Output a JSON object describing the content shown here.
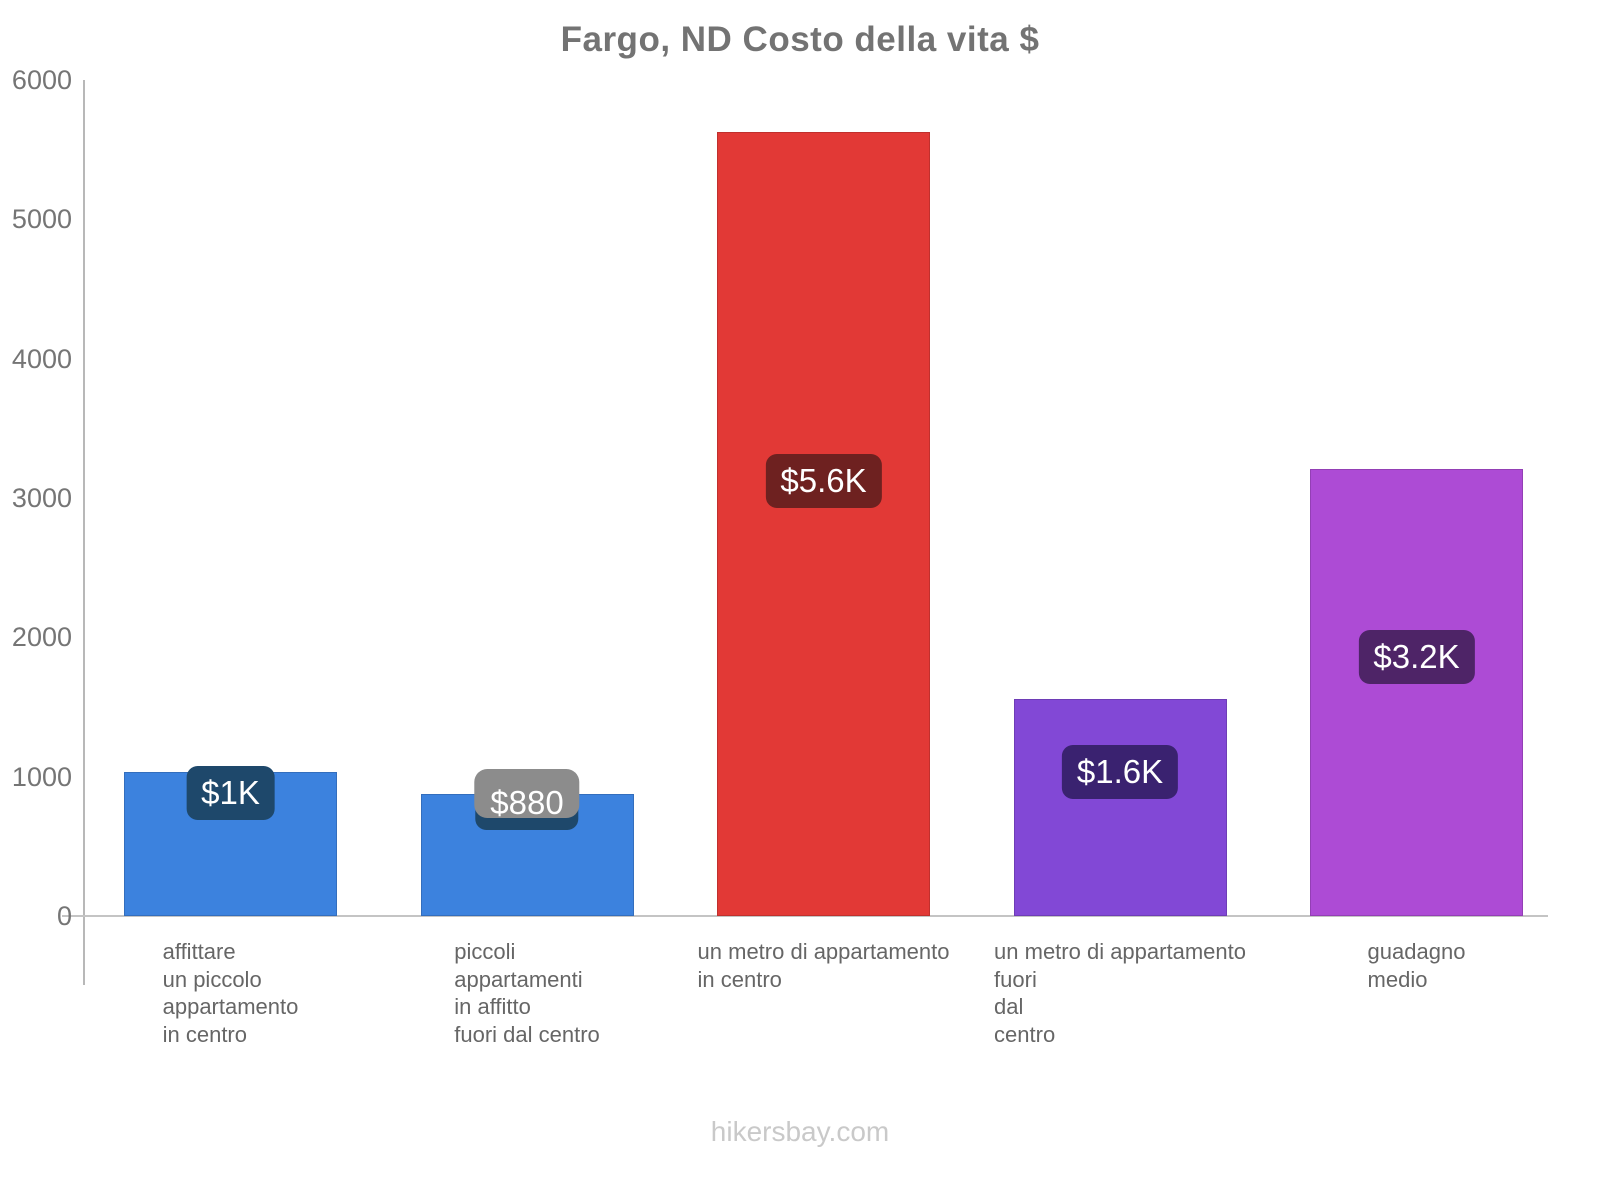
{
  "page": {
    "title": "Fargo, ND Costo della vita $",
    "watermark": "hikersbay.com"
  },
  "colors": {
    "title_text": "#737373",
    "axis_line": "#c0c0c0",
    "tick_label_text": "#757575",
    "category_label_text": "#666666",
    "watermark_text": "#c9c9c9",
    "blue_bar": "#3c82de",
    "red_bar": "#e23936",
    "violet_bar": "#8248d6",
    "magenta_bar": "#ad4bd5"
  },
  "chart_data": {
    "type": "bar",
    "title": "Fargo, ND Costo della vita $",
    "xlabel": "",
    "ylabel": "",
    "ylim": [
      0,
      6000
    ],
    "yticks": [
      "0",
      "1000",
      "2000",
      "3000",
      "4000",
      "5000",
      "6000"
    ],
    "grid": false,
    "legend": false,
    "currency": "$",
    "categories": [
      "affittare un piccolo appartamento in centro",
      "piccoli appartamenti in affitto fuori dal centro",
      "un metro di appartamento in centro",
      "un metro di appartamento fuori dal centro",
      "guadagno medio"
    ],
    "values": [
      1030,
      875,
      5630,
      1555,
      3210
    ],
    "bars": [
      {
        "category_lines": [
          "affittare",
          "un piccolo",
          "appartamento",
          "in centro"
        ],
        "value": 1030,
        "label": "$1K",
        "bar_color": "#3c82de",
        "label_bg": "#1e486b"
      },
      {
        "category_lines": [
          "piccoli",
          "appartamenti",
          "in affitto",
          "fuori dal centro"
        ],
        "value": 875,
        "label": "$880",
        "bar_color": "#3c82de",
        "label_bg": "#1e486b",
        "label_halo": "#8c8c8c"
      },
      {
        "category_lines": [
          "un metro di appartamento",
          "in centro"
        ],
        "value": 5630,
        "label": "$5.6K",
        "bar_color": "#e23936",
        "label_bg": "#6e2120"
      },
      {
        "category_lines": [
          "un metro di appartamento",
          "fuori",
          "dal",
          "centro"
        ],
        "value": 1555,
        "label": "$1.6K",
        "bar_color": "#8248d6",
        "label_bg": "#3a2270"
      },
      {
        "category_lines": [
          "guadagno",
          "medio"
        ],
        "value": 3210,
        "label": "$3.2K",
        "bar_color": "#ad4bd5",
        "label_bg": "#4e2467"
      }
    ]
  }
}
